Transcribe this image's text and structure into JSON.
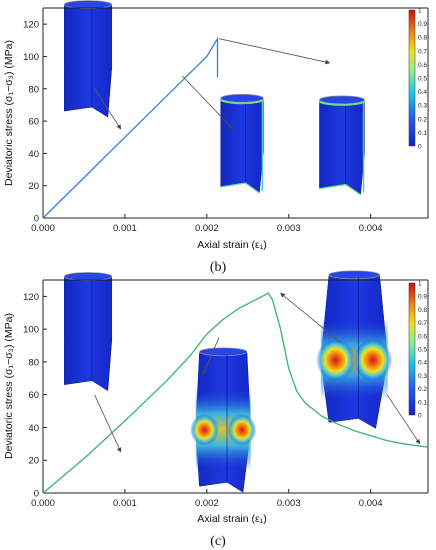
{
  "chart_data": [
    {
      "type": "line",
      "caption": "(b)",
      "xlabel": "Axial strain (ε₁)",
      "ylabel": "Deviatoric stress (σ₁−σ₃) (MPa)",
      "xlim": [
        0,
        0.0047
      ],
      "ylim": [
        0,
        130
      ],
      "xticks": [
        "0.000",
        "0.001",
        "0.002",
        "0.003",
        "0.004"
      ],
      "yticks": [
        "0",
        "20",
        "40",
        "60",
        "80",
        "100",
        "120"
      ],
      "grid": false,
      "series": [
        {
          "color": "#3b7fd9",
          "x": [
            0.0,
            0.0005,
            0.001,
            0.0015,
            0.002,
            0.00213,
            0.00213,
            0.00213
          ],
          "y": [
            0,
            25,
            50,
            75,
            100,
            111,
            100,
            87
          ]
        }
      ],
      "colorbar": {
        "ticks": [
          "1",
          "0.9",
          "0.8",
          "0.7",
          "0.6",
          "0.5",
          "0.4",
          "0.3",
          "0.2",
          "0.1",
          "0"
        ]
      },
      "insets": [
        {
          "name": "intact",
          "x": 0.00055,
          "y": 60,
          "w": 0.00058,
          "h": 74,
          "damage": "none"
        },
        {
          "name": "edge-damage-1",
          "x": 0.00365,
          "y": 12,
          "w": 0.00055,
          "h": 63,
          "damage": "edge"
        },
        {
          "name": "edge-damage-2",
          "x": 0.00243,
          "y": 13,
          "w": 0.00052,
          "h": 63,
          "damage": "edge"
        }
      ]
    },
    {
      "type": "line",
      "caption": "(c)",
      "xlabel": "Axial strain (ε₁)",
      "ylabel": "Deviatoric stress (σ₁−σ₃) (MPa)",
      "xlim": [
        0,
        0.0047
      ],
      "ylim": [
        0,
        130
      ],
      "xticks": [
        "0.000",
        "0.001",
        "0.002",
        "0.003",
        "0.004"
      ],
      "yticks": [
        "0",
        "20",
        "40",
        "60",
        "80",
        "100",
        "120"
      ],
      "grid": false,
      "series": [
        {
          "color": "#3cb371",
          "x": [
            0.0,
            0.0005,
            0.001,
            0.0015,
            0.0018,
            0.002,
            0.0022,
            0.0024,
            0.0026,
            0.00275,
            0.0028,
            0.0029,
            0.003,
            0.0031,
            0.0032,
            0.0034,
            0.0036,
            0.0038,
            0.004,
            0.0042,
            0.0044,
            0.0047
          ],
          "y": [
            0,
            21,
            44,
            68,
            84,
            97,
            106,
            113,
            118,
            122,
            118,
            100,
            76,
            62,
            55,
            47,
            42,
            38,
            35,
            32,
            30,
            28
          ]
        }
      ],
      "colorbar": {
        "ticks": [
          "1",
          "0.9",
          "0.8",
          "0.7",
          "0.6",
          "0.5",
          "0.4",
          "0.3",
          "0.2",
          "0.1",
          "0"
        ]
      },
      "insets": [
        {
          "name": "intact",
          "x": 0.00055,
          "y": 60,
          "w": 0.00058,
          "h": 74,
          "damage": "none"
        },
        {
          "name": "bulge-moderate",
          "x": 0.0022,
          "y": -2,
          "w": 0.00058,
          "h": 90,
          "damage": "bulge-moderate"
        },
        {
          "name": "bulge-severe",
          "x": 0.0038,
          "y": 37,
          "w": 0.00062,
          "h": 98,
          "damage": "bulge-severe"
        }
      ]
    }
  ],
  "colors": {
    "cylinder_blue": "#1a2ed4",
    "axis": "#222222",
    "arrow": "#555555"
  }
}
